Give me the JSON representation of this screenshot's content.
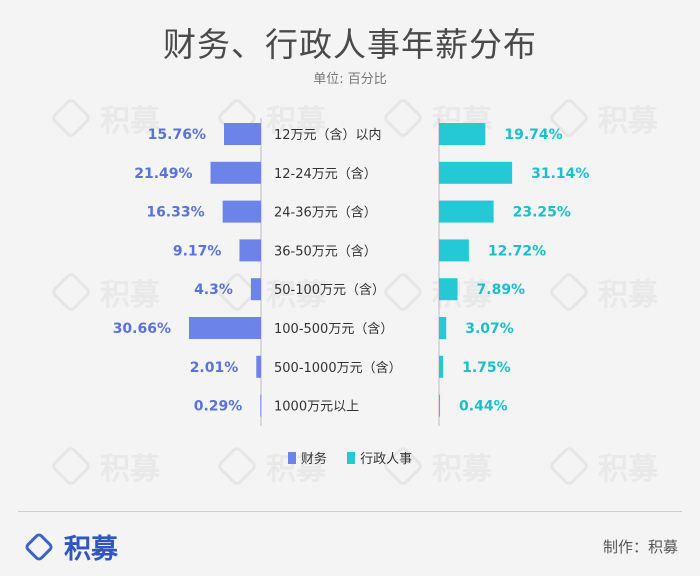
{
  "title": "财务、行政人事年薪分布",
  "subtitle": "单位: 百分比",
  "watermark": "积募",
  "chart_data": {
    "type": "bar",
    "orientation": "horizontal-butterfly",
    "categories": [
      "12万元（含）以内",
      "12-24万元（含）",
      "24-36万元（含）",
      "36-50万元（含）",
      "50-100万元（含）",
      "100-500万元（含）",
      "500-1000万元（含）",
      "1000万元以上"
    ],
    "series": [
      {
        "name": "财务",
        "color": "#6c83ea",
        "label_color": "#5a72e0",
        "side": "left",
        "values": [
          15.76,
          21.49,
          16.33,
          9.17,
          4.3,
          30.66,
          2.01,
          0.29
        ],
        "labels": [
          "15.76%",
          "21.49%",
          "16.33%",
          "9.17%",
          "4.3%",
          "30.66%",
          "2.01%",
          "0.29%"
        ]
      },
      {
        "name": "行政人事",
        "color": "#25c9d6",
        "label_color": "#1bbfcc",
        "side": "right",
        "values": [
          19.74,
          31.14,
          23.25,
          12.72,
          7.89,
          3.07,
          1.75,
          0.44
        ],
        "labels": [
          "19.74%",
          "31.14%",
          "23.25%",
          "12.72%",
          "7.89%",
          "3.07%",
          "1.75%",
          "0.44%"
        ]
      }
    ],
    "legend_placement": "bottom-center",
    "grid": false
  },
  "footer": {
    "brand": "积募",
    "credit": "制作：积募"
  }
}
